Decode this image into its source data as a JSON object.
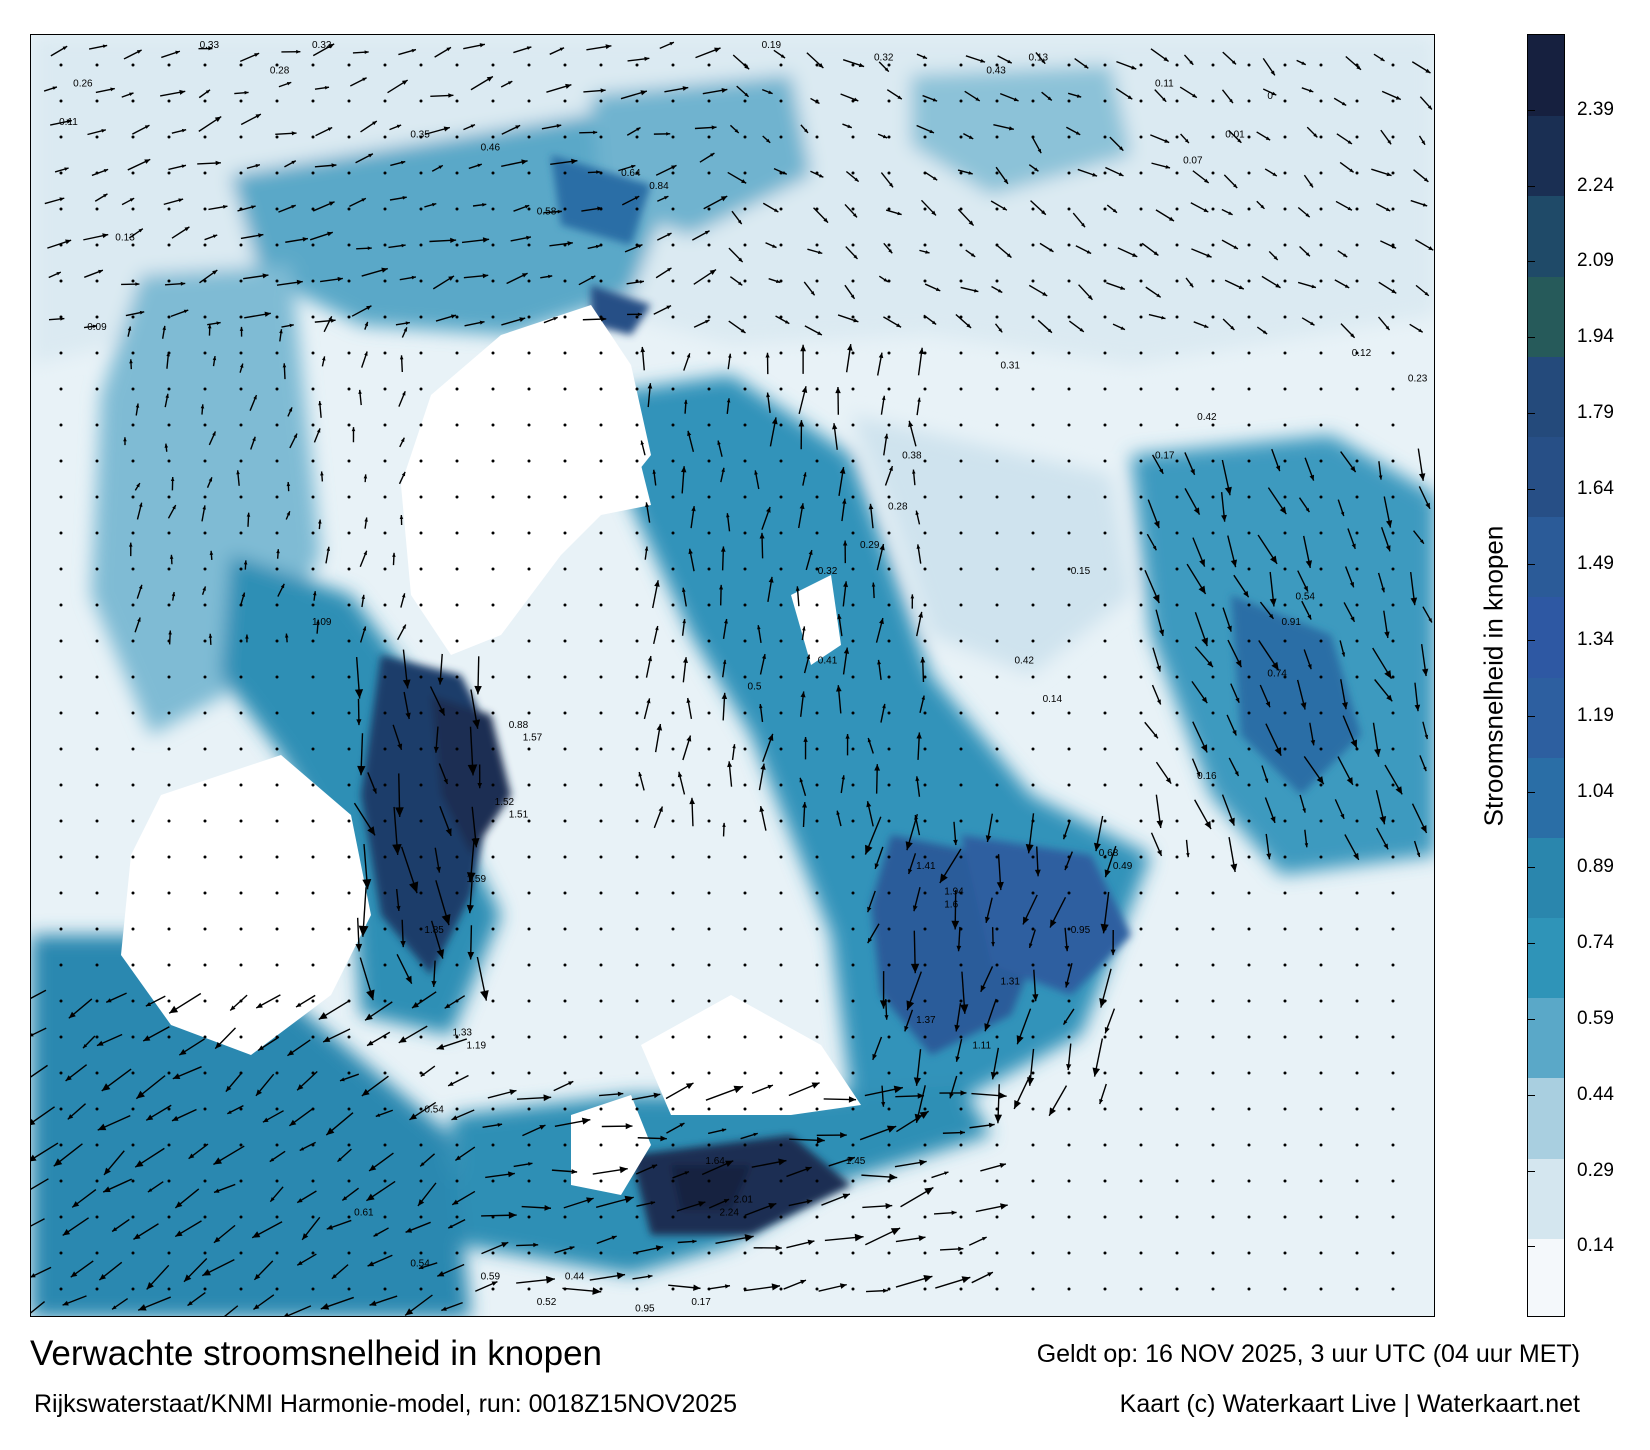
{
  "title": "Verwachte stroomsnelheid in knopen",
  "subtitle": "Rijkswaterstaat/KNMI Harmonie-model, run: 0018Z15NOV2025",
  "valid_time": "Geldt op: 16 NOV 2025, 3 uur UTC (04 uur MET)",
  "credit": "Kaart (c) Waterkaart Live | Waterkaart.net",
  "colorbar": {
    "label": "Stroomsnelheid in knopen",
    "min": 0,
    "max": 2.54,
    "ticks": [
      "2.39",
      "2.24",
      "2.09",
      "1.94",
      "1.79",
      "1.64",
      "1.49",
      "1.34",
      "1.19",
      "1.04",
      "0.89",
      "0.74",
      "0.59",
      "0.44",
      "0.29",
      "0.14"
    ],
    "colors": [
      "#f4f8fb",
      "#d4e6ef",
      "#a9cfe0",
      "#5aa8c8",
      "#2f94b8",
      "#2a86ad",
      "#2a6ea6",
      "#2d5fa0",
      "#2e58a3",
      "#2b5b98",
      "#274f86",
      "#244a7b",
      "#265a5a",
      "#1f4a68",
      "#1a2f53",
      "#16203f"
    ]
  },
  "map": {
    "background": "#ffffff",
    "sea_colors": {
      "low": "#e2eff6",
      "mid": "#2f8fb5",
      "high": "#1a2f53"
    },
    "vector_labels": [
      {
        "v": "0.33",
        "lon": 0.12,
        "lat": 0.01
      },
      {
        "v": "0.26",
        "lon": 0.03,
        "lat": 0.04
      },
      {
        "v": "0.11",
        "lon": 0.02,
        "lat": 0.07
      },
      {
        "v": "0.13",
        "lon": 0.06,
        "lat": 0.16
      },
      {
        "v": "0.09",
        "lon": 0.04,
        "lat": 0.23
      },
      {
        "v": "0.28",
        "lon": 0.17,
        "lat": 0.03
      },
      {
        "v": "0.32",
        "lon": 0.2,
        "lat": 0.01
      },
      {
        "v": "0.35",
        "lon": 0.27,
        "lat": 0.08
      },
      {
        "v": "0.46",
        "lon": 0.32,
        "lat": 0.09
      },
      {
        "v": "0.58",
        "lon": 0.36,
        "lat": 0.14
      },
      {
        "v": "0.64",
        "lon": 0.42,
        "lat": 0.11
      },
      {
        "v": "0.84",
        "lon": 0.44,
        "lat": 0.12
      },
      {
        "v": "0.19",
        "lon": 0.52,
        "lat": 0.01
      },
      {
        "v": "0.32",
        "lon": 0.6,
        "lat": 0.02
      },
      {
        "v": "0.43",
        "lon": 0.68,
        "lat": 0.03
      },
      {
        "v": "0.13",
        "lon": 0.71,
        "lat": 0.02
      },
      {
        "v": "0.12",
        "lon": 0.94,
        "lat": 0.25
      },
      {
        "v": "0.23",
        "lon": 0.98,
        "lat": 0.27
      },
      {
        "v": "0.54",
        "lon": 0.9,
        "lat": 0.44
      },
      {
        "v": "0.91",
        "lon": 0.89,
        "lat": 0.46
      },
      {
        "v": "0.74",
        "lon": 0.88,
        "lat": 0.5
      },
      {
        "v": "1.09",
        "lon": 0.2,
        "lat": 0.46
      },
      {
        "v": "0.88",
        "lon": 0.34,
        "lat": 0.54
      },
      {
        "v": "1.57",
        "lon": 0.35,
        "lat": 0.55
      },
      {
        "v": "1.52",
        "lon": 0.33,
        "lat": 0.6
      },
      {
        "v": "1.51",
        "lon": 0.34,
        "lat": 0.61
      },
      {
        "v": "1.59",
        "lon": 0.31,
        "lat": 0.66
      },
      {
        "v": "1.85",
        "lon": 0.28,
        "lat": 0.7
      },
      {
        "v": "1.33",
        "lon": 0.3,
        "lat": 0.78
      },
      {
        "v": "1.19",
        "lon": 0.31,
        "lat": 0.79
      },
      {
        "v": "0.54",
        "lon": 0.28,
        "lat": 0.84
      },
      {
        "v": "0.61",
        "lon": 0.23,
        "lat": 0.92
      },
      {
        "v": "0.54",
        "lon": 0.27,
        "lat": 0.96
      },
      {
        "v": "0.59",
        "lon": 0.32,
        "lat": 0.97
      },
      {
        "v": "0.44",
        "lon": 0.38,
        "lat": 0.97
      },
      {
        "v": "0.52",
        "lon": 0.36,
        "lat": 0.99
      },
      {
        "v": "0.95",
        "lon": 0.43,
        "lat": 0.995
      },
      {
        "v": "0.17",
        "lon": 0.47,
        "lat": 0.99
      },
      {
        "v": "1.64",
        "lon": 0.48,
        "lat": 0.88
      },
      {
        "v": "2.24",
        "lon": 0.49,
        "lat": 0.92
      },
      {
        "v": "2.01",
        "lon": 0.5,
        "lat": 0.91
      },
      {
        "v": "1.45",
        "lon": 0.58,
        "lat": 0.88
      },
      {
        "v": "1.41",
        "lon": 0.63,
        "lat": 0.65
      },
      {
        "v": "1.94",
        "lon": 0.65,
        "lat": 0.67
      },
      {
        "v": "1.6",
        "lon": 0.65,
        "lat": 0.68
      },
      {
        "v": "1.37",
        "lon": 0.63,
        "lat": 0.77
      },
      {
        "v": "1.31",
        "lon": 0.69,
        "lat": 0.74
      },
      {
        "v": "1.11",
        "lon": 0.67,
        "lat": 0.79
      },
      {
        "v": "0.95",
        "lon": 0.74,
        "lat": 0.7
      },
      {
        "v": "0.68",
        "lon": 0.76,
        "lat": 0.64
      },
      {
        "v": "0.49",
        "lon": 0.77,
        "lat": 0.65
      },
      {
        "v": "0.29",
        "lon": 0.59,
        "lat": 0.4
      },
      {
        "v": "0.32",
        "lon": 0.56,
        "lat": 0.42
      },
      {
        "v": "0.41",
        "lon": 0.56,
        "lat": 0.49
      },
      {
        "v": "0.5",
        "lon": 0.51,
        "lat": 0.51
      },
      {
        "v": "0.42",
        "lon": 0.7,
        "lat": 0.49
      },
      {
        "v": "0.31",
        "lon": 0.69,
        "lat": 0.26
      },
      {
        "v": "0.38",
        "lon": 0.62,
        "lat": 0.33
      },
      {
        "v": "0.28",
        "lon": 0.61,
        "lat": 0.37
      },
      {
        "v": "0.15",
        "lon": 0.74,
        "lat": 0.42
      },
      {
        "v": "0.14",
        "lon": 0.72,
        "lat": 0.52
      },
      {
        "v": "0.17",
        "lon": 0.8,
        "lat": 0.33
      },
      {
        "v": "0.42",
        "lon": 0.83,
        "lat": 0.3
      },
      {
        "v": "0.16",
        "lon": 0.83,
        "lat": 0.58
      },
      {
        "v": "0.01",
        "lon": 0.85,
        "lat": 0.08
      },
      {
        "v": "0",
        "lon": 0.88,
        "lat": 0.05
      },
      {
        "v": "0.07",
        "lon": 0.82,
        "lat": 0.1
      },
      {
        "v": "0.11",
        "lon": 0.8,
        "lat": 0.04
      }
    ]
  }
}
